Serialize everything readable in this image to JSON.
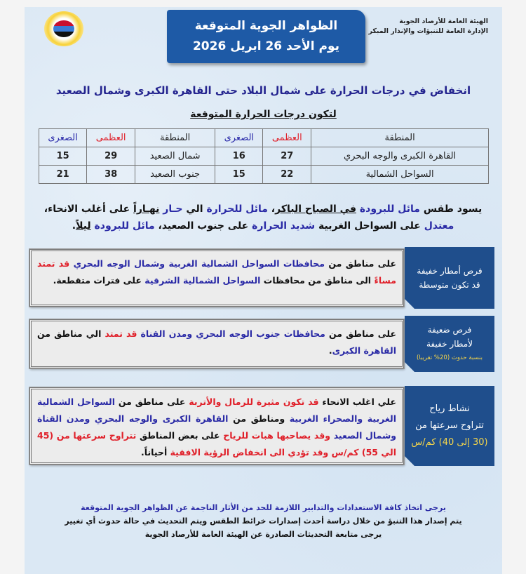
{
  "org": {
    "line1": "الهيئة العامة للأرصاد الجوية",
    "line2": "الإدارة العامة للتنبؤات والإنذار المبكر"
  },
  "title": {
    "line1": "الظواهر الجوية المتوقعة",
    "line2": "يوم الأحد 26 ابريل 2026"
  },
  "headline": "انخفاض في درجات الحرارة على شمال البلاد حتى القاهرة الكبرى وشمال الصعيد",
  "subhead": "لتكون درجات الحرارة المتوقعة",
  "table": {
    "headers": [
      "المنطقة",
      "العظمى",
      "الصغرى",
      "المنطقة",
      "العظمى",
      "الصغرى"
    ],
    "rows": [
      [
        "القاهرة الكبرى والوجه البحري",
        "27",
        "16",
        "شمال الصعيد",
        "29",
        "15"
      ],
      [
        "السواحل الشمالية",
        "22",
        "15",
        "جنوب الصعيد",
        "38",
        "21"
      ]
    ]
  },
  "colors": {
    "accent": "#1e5aa6",
    "red": "#e0202a",
    "blue": "#2a2aa6",
    "label_bg": "#1f4e8c",
    "yellow": "#f5d64a"
  },
  "paragraph": [
    [
      {
        "t": "يسود طقس ",
        "s": "n"
      },
      {
        "t": "مائل للبرودة",
        "s": "b"
      },
      {
        "t": " ",
        "s": "n"
      },
      {
        "t": "في الصباح الباكر",
        "s": "n u"
      },
      {
        "t": "، ",
        "s": "n"
      },
      {
        "t": "مائل للحرارة",
        "s": "b"
      },
      {
        "t": " الي ",
        "s": "n"
      },
      {
        "t": "حـار",
        "s": "b"
      },
      {
        "t": " ",
        "s": "n"
      },
      {
        "t": "نهـاراً",
        "s": "n u"
      },
      {
        "t": " على أغلب الانحاء،",
        "s": "n"
      }
    ],
    [
      {
        "t": "معتدل",
        "s": "b"
      },
      {
        "t": " على السواحل الغربية ",
        "s": "n"
      },
      {
        "t": "شديد الحرارة",
        "s": "b"
      },
      {
        "t": " على جنوب الصعيد، ",
        "s": "n"
      },
      {
        "t": "مائل للبرودة",
        "s": "b"
      },
      {
        "t": " ",
        "s": "n"
      },
      {
        "t": "ليلاً",
        "s": "n u"
      },
      {
        "t": ".",
        "s": "n"
      }
    ]
  ],
  "boxes": [
    {
      "label": [
        "فرص أمطار خفيفة",
        "قد تكون متوسطة"
      ],
      "label_note": "",
      "text": [
        {
          "t": "على مناطق من ",
          "s": "n"
        },
        {
          "t": "محافظات السواحل الشمالية الغربية وشمال الوجه البحري",
          "s": "b"
        },
        {
          "t": " ",
          "s": "n"
        },
        {
          "t": "قد تمتد مساءً",
          "s": "r"
        },
        {
          "t": " الى مناطق من محافظات ",
          "s": "n"
        },
        {
          "t": "السواحل الشمالية الشرقية",
          "s": "b"
        },
        {
          "t": " على فترات متقطعة.",
          "s": "n"
        }
      ]
    },
    {
      "label": [
        "فرص ضعيفة",
        "لأمطار خفيفة"
      ],
      "label_note": "بنسبة حدوث (20% تقريبا)",
      "text": [
        {
          "t": "على مناطق من ",
          "s": "n"
        },
        {
          "t": "محافظات جنوب الوجه البحري ومدن القناة",
          "s": "b"
        },
        {
          "t": " ",
          "s": "n"
        },
        {
          "t": "قد تمتد",
          "s": "r"
        },
        {
          "t": " الي مناطق من ",
          "s": "n"
        },
        {
          "t": "القاهرة الكبرى",
          "s": "b"
        },
        {
          "t": ".",
          "s": "n"
        }
      ]
    },
    {
      "label": [
        "نشاط رياح",
        "تتراوح سرعتها من"
      ],
      "label_note": "(30 إلى 40) كم/س",
      "text": [
        {
          "t": "علي اغلب الانحاء ",
          "s": "n"
        },
        {
          "t": "قد تكون مثيرة للرمال والأتربة",
          "s": "r"
        },
        {
          "t": " على مناطق من ",
          "s": "n"
        },
        {
          "t": "السواحل الشمالية الغربية والصحراء الغربية",
          "s": "b"
        },
        {
          "t": " ومناطق من ",
          "s": "n"
        },
        {
          "t": "القاهرة الكبرى والوجه البحري ومدن القناة وشمال الصعيد",
          "s": "b"
        },
        {
          "t": " ",
          "s": "n"
        },
        {
          "t": "وقد يصاحبها هبات للرياح",
          "s": "r"
        },
        {
          "t": " على بعض المناطق ",
          "s": "n"
        },
        {
          "t": "تتراوح سرعتها من (45 الي 55) كم/س",
          "s": "r"
        },
        {
          "t": " ",
          "s": "n"
        },
        {
          "t": "وقد تؤدي الى انخفاض الرؤية الافقية",
          "s": "r"
        },
        {
          "t": " أحياناً.",
          "s": "n"
        }
      ]
    }
  ],
  "footer": {
    "line1": "يرجى اتخاذ كافة الاستعدادات والتدابير اللازمة للحد من الأثار الناجمة عن الظواهر الجوية المتوقعة",
    "line2": "يتم إصدار هذا التنبؤ من خلال دراسة أحدث إصدارات خرائط الطقس ويتم التحديث في حالة حدوث أي تغيير",
    "line3": "يرجى متابعة التحديثات الصادرة عن الهيئة العامة للأرصاد الجوية"
  }
}
